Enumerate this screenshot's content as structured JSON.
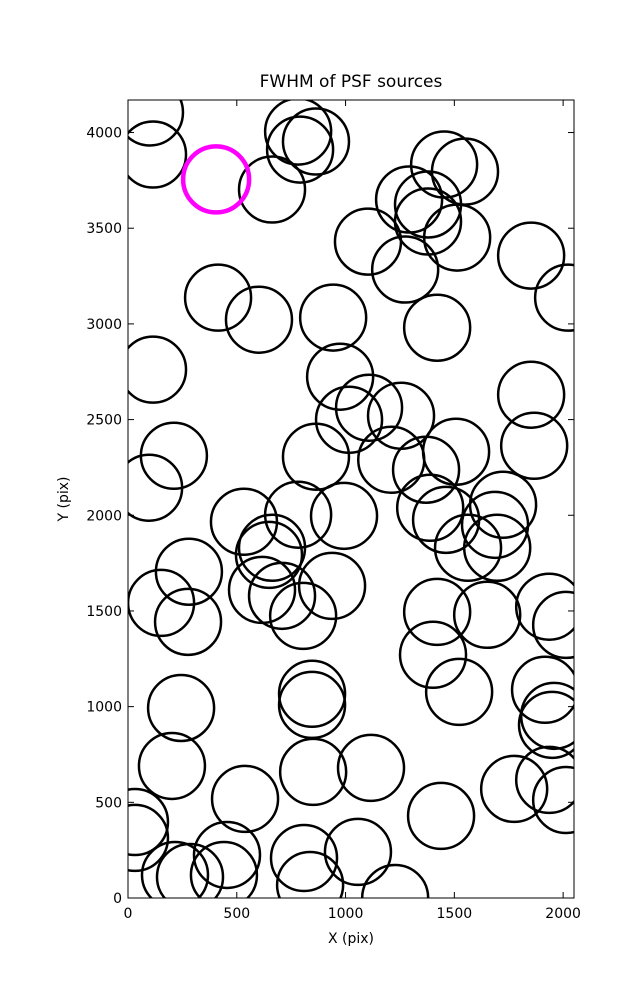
{
  "chart_data": {
    "type": "scatter",
    "title": "FWHM of PSF sources",
    "x_label": "X (pix)",
    "y_label": "Y (pix)",
    "xlim": [
      0,
      2050
    ],
    "ylim": [
      0,
      4170
    ],
    "xticks": [
      0,
      500,
      1000,
      1500,
      2000
    ],
    "yticks": [
      0,
      500,
      1000,
      1500,
      2000,
      2500,
      3000,
      3500,
      4000
    ],
    "series": [
      {
        "color": "#000000",
        "marker": "open-circle",
        "x": [
          101,
          115,
          662,
          782,
          864,
          791,
          1453,
          1549,
          1292,
          1379,
          1379,
          1513,
          1103,
          1274,
          1853,
          2023,
          414,
          602,
          943,
          1421,
          115,
          975,
          1108,
          1016,
          1255,
          1853,
          1867,
          1508,
          1370,
          1210,
          864,
          211,
          97,
          1389,
          1462,
          1724,
          1687,
          1563,
          1697,
          993,
          782,
          533,
          662,
          648,
          280,
          152,
          276,
          616,
          708,
          938,
          805,
          1421,
          1651,
          1936,
          2014,
          1402,
          1522,
          1917,
          1959,
          1949,
          846,
          846,
          244,
          202,
          851,
          1117,
          538,
          1775,
          1936,
          2014,
          32,
          32,
          1439,
          455,
          809,
          1057,
          216,
          285,
          441,
          837,
          1228
        ],
        "values": [
          4105,
          3885,
          3702,
          4005,
          3953,
          3911,
          3833,
          3796,
          3650,
          3624,
          3535,
          3451,
          3430,
          3284,
          3357,
          3137,
          3137,
          3022,
          3033,
          2980,
          2761,
          2724,
          2562,
          2499,
          2520,
          2630,
          2363,
          2332,
          2238,
          2290,
          2306,
          2311,
          2144,
          2039,
          1976,
          2055,
          1950,
          1830,
          1830,
          1997,
          2003,
          1966,
          1830,
          1793,
          1705,
          1542,
          1443,
          1610,
          1579,
          1631,
          1474,
          1495,
          1480,
          1522,
          1427,
          1271,
          1077,
          1088,
          952,
          905,
          1067,
          1009,
          993,
          690,
          659,
          680,
          518,
          570,
          617,
          512,
          397,
          314,
          429,
          225,
          209,
          241,
          120,
          110,
          120,
          68,
          0
        ]
      },
      {
        "color": "#ff00ff",
        "marker": "open-circle",
        "x": [
          405
        ],
        "values": [
          3755
        ]
      }
    ]
  }
}
